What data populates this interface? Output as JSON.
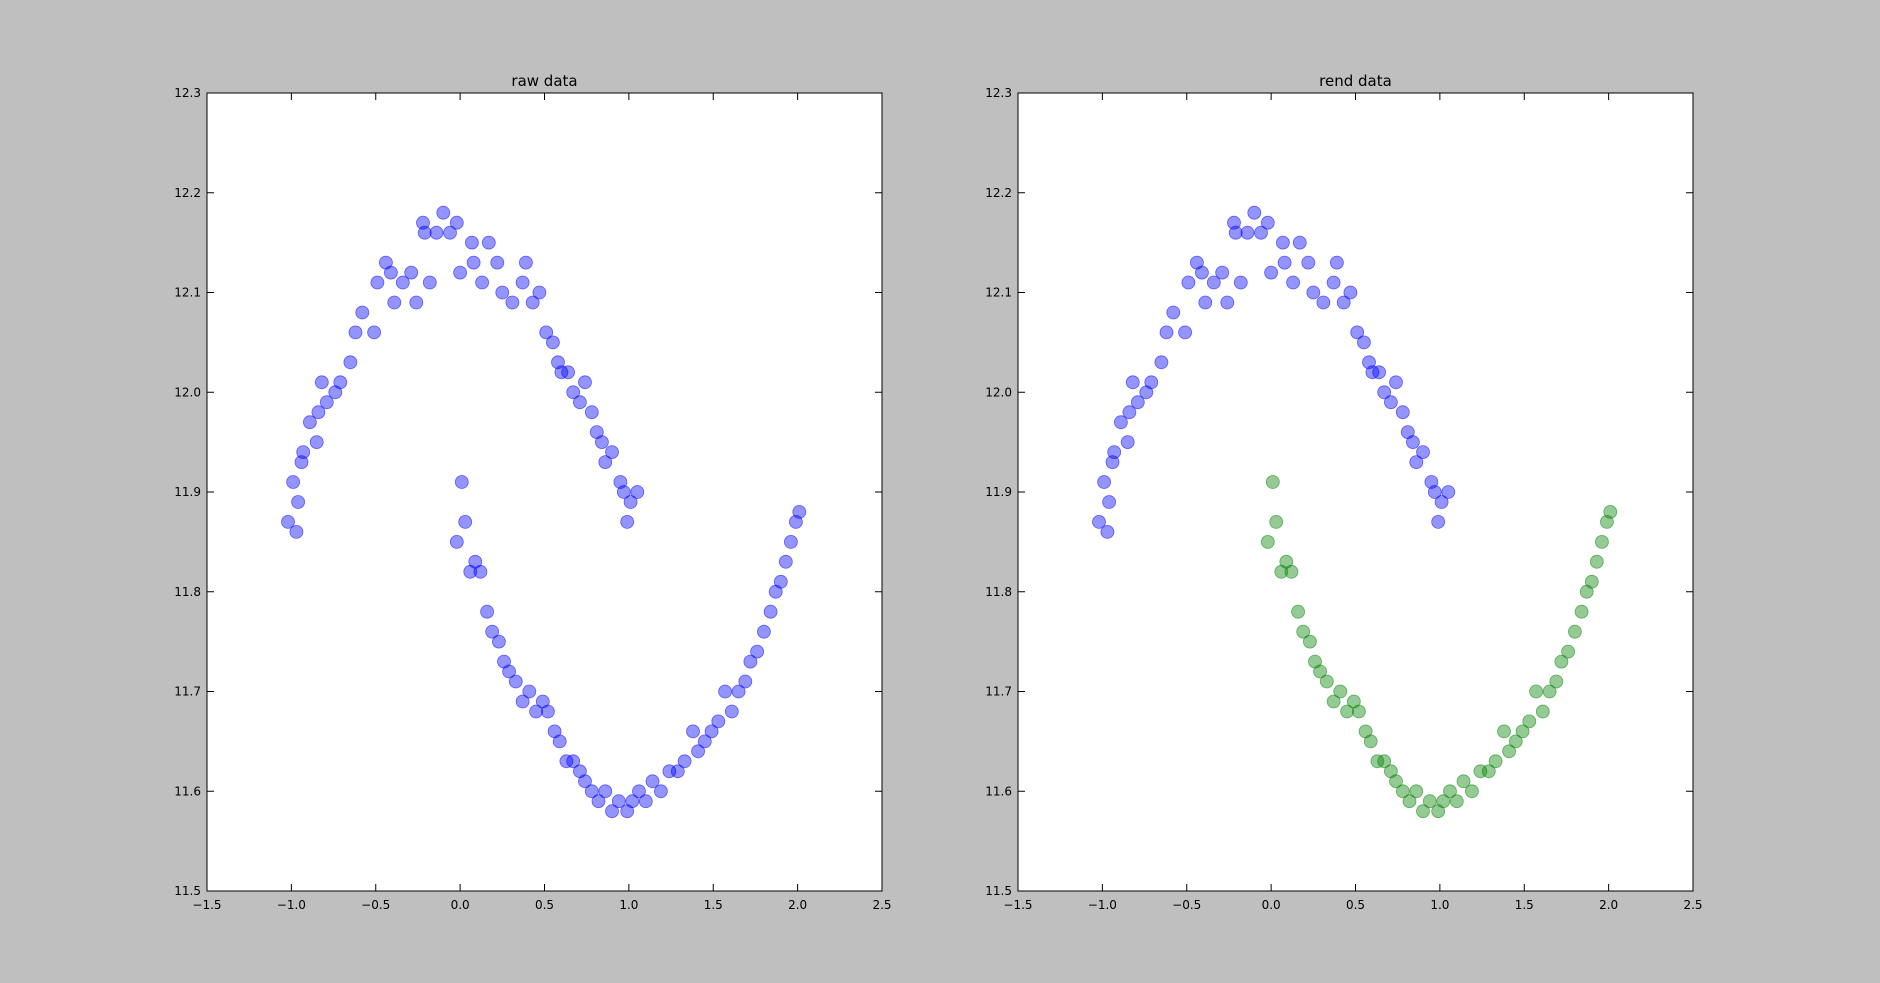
{
  "figure": {
    "background": "#bfbfbf"
  },
  "chart_data": [
    {
      "type": "scatter",
      "title": "raw data",
      "xlabel": "",
      "ylabel": "",
      "xlim": [
        -1.5,
        2.5
      ],
      "ylim": [
        11.5,
        12.3
      ],
      "xticks": [
        "−1.5",
        "−1.0",
        "−0.5",
        "0.0",
        "0.5",
        "1.0",
        "1.5",
        "2.0",
        "2.5"
      ],
      "yticks": [
        "11.5",
        "11.6",
        "11.7",
        "11.8",
        "11.9",
        "12.0",
        "12.1",
        "12.2",
        "12.3"
      ],
      "grid": false,
      "series": [
        {
          "color": "#0000ff",
          "points": [
            [
              -1.02,
              11.87
            ],
            [
              -0.99,
              11.91
            ],
            [
              -0.97,
              11.86
            ],
            [
              -0.96,
              11.89
            ],
            [
              -0.93,
              11.94
            ],
            [
              -0.94,
              11.93
            ],
            [
              -0.89,
              11.97
            ],
            [
              -0.85,
              11.95
            ],
            [
              -0.84,
              11.98
            ],
            [
              -0.82,
              12.01
            ],
            [
              -0.79,
              11.99
            ],
            [
              -0.74,
              12.0
            ],
            [
              -0.71,
              12.01
            ],
            [
              -0.65,
              12.03
            ],
            [
              -0.62,
              12.06
            ],
            [
              -0.58,
              12.08
            ],
            [
              -0.51,
              12.06
            ],
            [
              -0.49,
              12.11
            ],
            [
              -0.44,
              12.13
            ],
            [
              -0.41,
              12.12
            ],
            [
              -0.39,
              12.09
            ],
            [
              -0.34,
              12.11
            ],
            [
              -0.29,
              12.12
            ],
            [
              -0.26,
              12.09
            ],
            [
              -0.21,
              12.16
            ],
            [
              -0.18,
              12.11
            ],
            [
              -0.22,
              12.17
            ],
            [
              -0.14,
              12.16
            ],
            [
              -0.1,
              12.18
            ],
            [
              -0.06,
              12.16
            ],
            [
              -0.02,
              12.17
            ],
            [
              0.0,
              12.12
            ],
            [
              0.07,
              12.15
            ],
            [
              0.08,
              12.13
            ],
            [
              0.13,
              12.11
            ],
            [
              0.17,
              12.15
            ],
            [
              0.22,
              12.13
            ],
            [
              0.25,
              12.1
            ],
            [
              0.31,
              12.09
            ],
            [
              0.37,
              12.11
            ],
            [
              0.39,
              12.13
            ],
            [
              0.43,
              12.09
            ],
            [
              0.47,
              12.1
            ],
            [
              0.51,
              12.06
            ],
            [
              0.55,
              12.05
            ],
            [
              0.58,
              12.03
            ],
            [
              0.6,
              12.02
            ],
            [
              0.64,
              12.02
            ],
            [
              0.67,
              12.0
            ],
            [
              0.71,
              11.99
            ],
            [
              0.74,
              12.01
            ],
            [
              0.78,
              11.98
            ],
            [
              0.81,
              11.96
            ],
            [
              0.84,
              11.95
            ],
            [
              0.86,
              11.93
            ],
            [
              0.9,
              11.94
            ],
            [
              0.95,
              11.91
            ],
            [
              0.97,
              11.9
            ],
            [
              0.99,
              11.87
            ],
            [
              1.01,
              11.89
            ],
            [
              1.05,
              11.9
            ],
            [
              0.01,
              11.91
            ],
            [
              -0.02,
              11.85
            ],
            [
              0.03,
              11.87
            ],
            [
              0.06,
              11.82
            ],
            [
              0.09,
              11.83
            ],
            [
              0.12,
              11.82
            ],
            [
              0.16,
              11.78
            ],
            [
              0.19,
              11.76
            ],
            [
              0.23,
              11.75
            ],
            [
              0.26,
              11.73
            ],
            [
              0.29,
              11.72
            ],
            [
              0.33,
              11.71
            ],
            [
              0.37,
              11.69
            ],
            [
              0.41,
              11.7
            ],
            [
              0.45,
              11.68
            ],
            [
              0.49,
              11.69
            ],
            [
              0.52,
              11.68
            ],
            [
              0.56,
              11.66
            ],
            [
              0.59,
              11.65
            ],
            [
              0.63,
              11.63
            ],
            [
              0.67,
              11.63
            ],
            [
              0.71,
              11.62
            ],
            [
              0.74,
              11.61
            ],
            [
              0.78,
              11.6
            ],
            [
              0.82,
              11.59
            ],
            [
              0.86,
              11.6
            ],
            [
              0.9,
              11.58
            ],
            [
              0.94,
              11.59
            ],
            [
              0.99,
              11.58
            ],
            [
              1.02,
              11.59
            ],
            [
              1.06,
              11.6
            ],
            [
              1.1,
              11.59
            ],
            [
              1.14,
              11.61
            ],
            [
              1.19,
              11.6
            ],
            [
              1.24,
              11.62
            ],
            [
              1.29,
              11.62
            ],
            [
              1.33,
              11.63
            ],
            [
              1.38,
              11.66
            ],
            [
              1.41,
              11.64
            ],
            [
              1.45,
              11.65
            ],
            [
              1.49,
              11.66
            ],
            [
              1.53,
              11.67
            ],
            [
              1.57,
              11.7
            ],
            [
              1.61,
              11.68
            ],
            [
              1.65,
              11.7
            ],
            [
              1.69,
              11.71
            ],
            [
              1.72,
              11.73
            ],
            [
              1.76,
              11.74
            ],
            [
              1.8,
              11.76
            ],
            [
              1.84,
              11.78
            ],
            [
              1.87,
              11.8
            ],
            [
              1.9,
              11.81
            ],
            [
              1.93,
              11.83
            ],
            [
              1.96,
              11.85
            ],
            [
              1.99,
              11.87
            ],
            [
              2.01,
              11.88
            ]
          ]
        }
      ]
    },
    {
      "type": "scatter",
      "title": "rend data",
      "xlabel": "",
      "ylabel": "",
      "xlim": [
        -1.5,
        2.5
      ],
      "ylim": [
        11.5,
        12.3
      ],
      "xticks": [
        "−1.5",
        "−1.0",
        "−0.5",
        "0.0",
        "0.5",
        "1.0",
        "1.5",
        "2.0",
        "2.5"
      ],
      "yticks": [
        "11.5",
        "11.6",
        "11.7",
        "11.8",
        "11.9",
        "12.0",
        "12.1",
        "12.2",
        "12.3"
      ],
      "grid": false,
      "series": [
        {
          "color": "#0000ff",
          "points": [
            [
              -1.02,
              11.87
            ],
            [
              -0.99,
              11.91
            ],
            [
              -0.97,
              11.86
            ],
            [
              -0.96,
              11.89
            ],
            [
              -0.93,
              11.94
            ],
            [
              -0.94,
              11.93
            ],
            [
              -0.89,
              11.97
            ],
            [
              -0.85,
              11.95
            ],
            [
              -0.84,
              11.98
            ],
            [
              -0.82,
              12.01
            ],
            [
              -0.79,
              11.99
            ],
            [
              -0.74,
              12.0
            ],
            [
              -0.71,
              12.01
            ],
            [
              -0.65,
              12.03
            ],
            [
              -0.62,
              12.06
            ],
            [
              -0.58,
              12.08
            ],
            [
              -0.51,
              12.06
            ],
            [
              -0.49,
              12.11
            ],
            [
              -0.44,
              12.13
            ],
            [
              -0.41,
              12.12
            ],
            [
              -0.39,
              12.09
            ],
            [
              -0.34,
              12.11
            ],
            [
              -0.29,
              12.12
            ],
            [
              -0.26,
              12.09
            ],
            [
              -0.21,
              12.16
            ],
            [
              -0.18,
              12.11
            ],
            [
              -0.22,
              12.17
            ],
            [
              -0.14,
              12.16
            ],
            [
              -0.1,
              12.18
            ],
            [
              -0.06,
              12.16
            ],
            [
              -0.02,
              12.17
            ],
            [
              0.0,
              12.12
            ],
            [
              0.07,
              12.15
            ],
            [
              0.08,
              12.13
            ],
            [
              0.13,
              12.11
            ],
            [
              0.17,
              12.15
            ],
            [
              0.22,
              12.13
            ],
            [
              0.25,
              12.1
            ],
            [
              0.31,
              12.09
            ],
            [
              0.37,
              12.11
            ],
            [
              0.39,
              12.13
            ],
            [
              0.43,
              12.09
            ],
            [
              0.47,
              12.1
            ],
            [
              0.51,
              12.06
            ],
            [
              0.55,
              12.05
            ],
            [
              0.58,
              12.03
            ],
            [
              0.6,
              12.02
            ],
            [
              0.64,
              12.02
            ],
            [
              0.67,
              12.0
            ],
            [
              0.71,
              11.99
            ],
            [
              0.74,
              12.01
            ],
            [
              0.78,
              11.98
            ],
            [
              0.81,
              11.96
            ],
            [
              0.84,
              11.95
            ],
            [
              0.86,
              11.93
            ],
            [
              0.9,
              11.94
            ],
            [
              0.95,
              11.91
            ],
            [
              0.97,
              11.9
            ],
            [
              0.99,
              11.87
            ],
            [
              1.01,
              11.89
            ],
            [
              1.05,
              11.9
            ]
          ]
        },
        {
          "color": "#008000",
          "points": [
            [
              0.01,
              11.91
            ],
            [
              -0.02,
              11.85
            ],
            [
              0.03,
              11.87
            ],
            [
              0.06,
              11.82
            ],
            [
              0.09,
              11.83
            ],
            [
              0.12,
              11.82
            ],
            [
              0.16,
              11.78
            ],
            [
              0.19,
              11.76
            ],
            [
              0.23,
              11.75
            ],
            [
              0.26,
              11.73
            ],
            [
              0.29,
              11.72
            ],
            [
              0.33,
              11.71
            ],
            [
              0.37,
              11.69
            ],
            [
              0.41,
              11.7
            ],
            [
              0.45,
              11.68
            ],
            [
              0.49,
              11.69
            ],
            [
              0.52,
              11.68
            ],
            [
              0.56,
              11.66
            ],
            [
              0.59,
              11.65
            ],
            [
              0.63,
              11.63
            ],
            [
              0.67,
              11.63
            ],
            [
              0.71,
              11.62
            ],
            [
              0.74,
              11.61
            ],
            [
              0.78,
              11.6
            ],
            [
              0.82,
              11.59
            ],
            [
              0.86,
              11.6
            ],
            [
              0.9,
              11.58
            ],
            [
              0.94,
              11.59
            ],
            [
              0.99,
              11.58
            ],
            [
              1.02,
              11.59
            ],
            [
              1.06,
              11.6
            ],
            [
              1.1,
              11.59
            ],
            [
              1.14,
              11.61
            ],
            [
              1.19,
              11.6
            ],
            [
              1.24,
              11.62
            ],
            [
              1.29,
              11.62
            ],
            [
              1.33,
              11.63
            ],
            [
              1.38,
              11.66
            ],
            [
              1.41,
              11.64
            ],
            [
              1.45,
              11.65
            ],
            [
              1.49,
              11.66
            ],
            [
              1.53,
              11.67
            ],
            [
              1.57,
              11.7
            ],
            [
              1.61,
              11.68
            ],
            [
              1.65,
              11.7
            ],
            [
              1.69,
              11.71
            ],
            [
              1.72,
              11.73
            ],
            [
              1.76,
              11.74
            ],
            [
              1.8,
              11.76
            ],
            [
              1.84,
              11.78
            ],
            [
              1.87,
              11.8
            ],
            [
              1.9,
              11.81
            ],
            [
              1.93,
              11.83
            ],
            [
              1.96,
              11.85
            ],
            [
              1.99,
              11.87
            ],
            [
              2.01,
              11.88
            ]
          ]
        }
      ]
    }
  ]
}
